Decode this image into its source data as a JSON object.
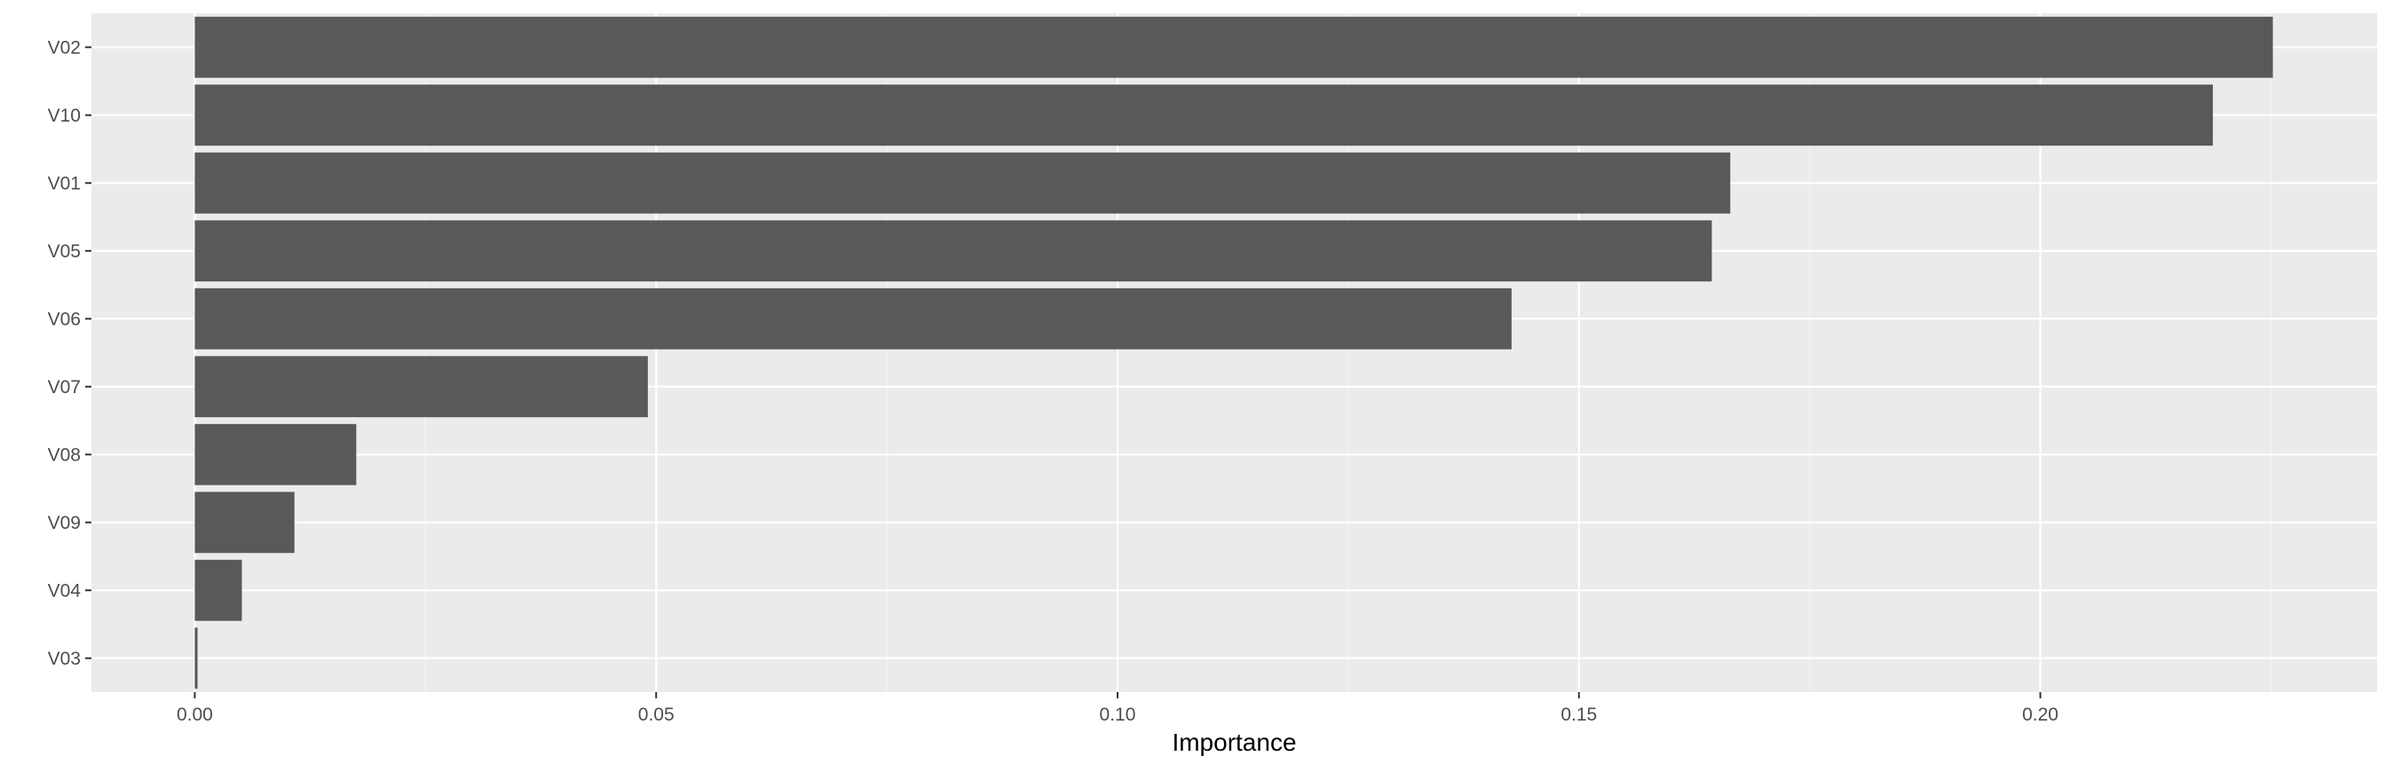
{
  "chart_data": {
    "type": "bar",
    "orientation": "horizontal",
    "categories": [
      "V02",
      "V10",
      "V01",
      "V05",
      "V06",
      "V07",
      "V08",
      "V09",
      "V04",
      "V03"
    ],
    "values": [
      0.2252,
      0.2187,
      0.1664,
      0.1644,
      0.1427,
      0.0491,
      0.0175,
      0.0108,
      0.0051,
      0.0003
    ],
    "title": "",
    "xlabel": "Importance",
    "ylabel": "",
    "xlim": [
      -0.0112,
      0.2365
    ],
    "x_ticks": [
      0.0,
      0.05,
      0.1,
      0.15,
      0.2
    ],
    "x_tick_labels": [
      "0.00",
      "0.05",
      "0.10",
      "0.15",
      "0.20"
    ],
    "grid": true,
    "legend": "none",
    "colors": {
      "bar": "#595959",
      "panel_background": "#ebebeb",
      "grid_major": "#ffffff",
      "grid_minor": "#f5f5f5",
      "tick": "#333333",
      "tick_label": "#4d4d4d"
    }
  }
}
